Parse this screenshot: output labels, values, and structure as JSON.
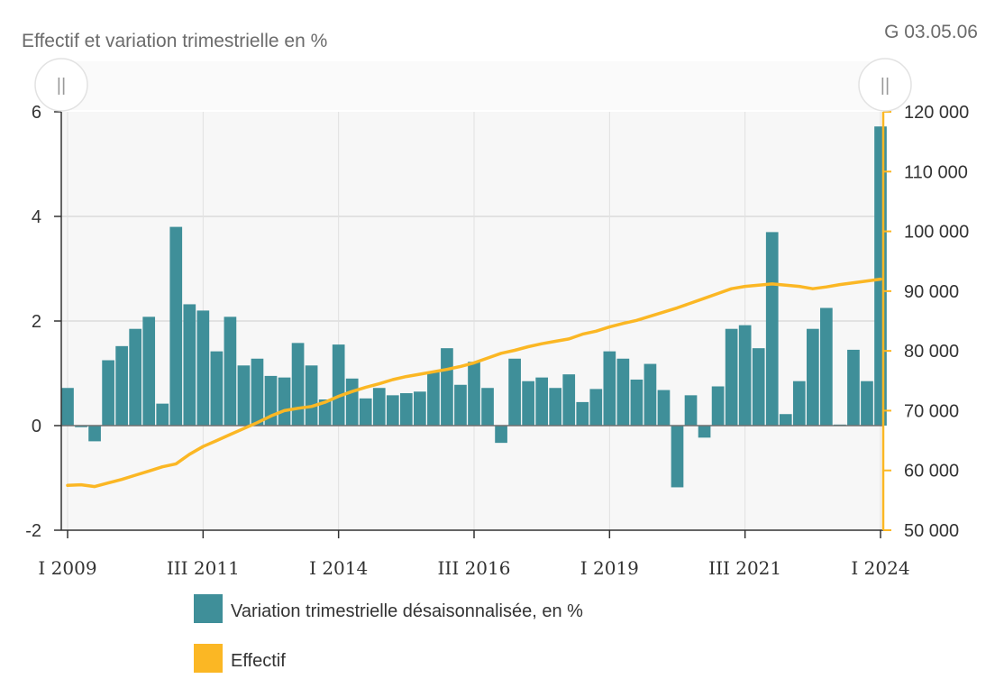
{
  "header": {
    "title": "Effectif et variation trimestrielle en %",
    "code": "G 03.05.06"
  },
  "colors": {
    "bar": "#3f8f99",
    "line": "#fbb724",
    "grid": "#cccccc",
    "plot_bg": "#f7f7f7",
    "axis": "#333333"
  },
  "icons": {
    "left_handle": "drag-handle-icon",
    "right_handle": "drag-handle-icon"
  },
  "chart_data": {
    "type": "bar+line",
    "title": "Effectif et variation trimestrielle en %",
    "x": [
      "I 2009",
      "II 2009",
      "III 2009",
      "IV 2009",
      "I 2010",
      "II 2010",
      "III 2010",
      "IV 2010",
      "I 2011",
      "II 2011",
      "III 2011",
      "IV 2011",
      "I 2012",
      "II 2012",
      "III 2012",
      "IV 2012",
      "I 2013",
      "II 2013",
      "III 2013",
      "IV 2013",
      "I 2014",
      "II 2014",
      "III 2014",
      "IV 2014",
      "I 2015",
      "II 2015",
      "III 2015",
      "IV 2015",
      "I 2016",
      "II 2016",
      "III 2016",
      "IV 2016",
      "I 2017",
      "II 2017",
      "III 2017",
      "IV 2017",
      "I 2018",
      "II 2018",
      "III 2018",
      "IV 2018",
      "I 2019",
      "II 2019",
      "III 2019",
      "IV 2019",
      "I 2020",
      "II 2020",
      "III 2020",
      "IV 2020",
      "I 2021",
      "II 2021",
      "III 2021",
      "IV 2021",
      "I 2022",
      "II 2022",
      "III 2022",
      "IV 2022",
      "I 2023",
      "II 2023",
      "III 2023",
      "IV 2023",
      "I 2024"
    ],
    "x_tick_labels": [
      "I 2009",
      "III 2011",
      "I 2014",
      "III 2016",
      "I 2019",
      "III 2021",
      "I 2024"
    ],
    "series": [
      {
        "name": "Variation trimestrielle désaisonnalisée, en %",
        "type": "bar",
        "axis": "left",
        "values": [
          0.72,
          -0.03,
          -0.3,
          1.25,
          1.52,
          1.85,
          2.08,
          0.42,
          3.8,
          2.32,
          2.2,
          1.42,
          2.08,
          1.15,
          1.28,
          0.95,
          0.92,
          1.58,
          1.15,
          0.5,
          1.55,
          0.9,
          0.52,
          0.72,
          0.58,
          0.62,
          0.65,
          1.02,
          1.48,
          0.78,
          1.22,
          0.72,
          -0.33,
          1.28,
          0.85,
          0.92,
          0.72,
          0.98,
          0.45,
          0.7,
          1.42,
          1.28,
          0.88,
          1.18,
          0.68,
          -1.18,
          0.58,
          -0.23,
          0.75,
          1.85,
          1.92,
          1.48,
          3.7,
          0.22,
          0.85,
          1.85,
          2.25,
          0.02,
          1.45,
          0.85,
          5.72
        ]
      },
      {
        "name": "Effectif",
        "type": "line",
        "axis": "right",
        "values": [
          57500,
          57600,
          57300,
          57900,
          58500,
          59200,
          59900,
          60600,
          61100,
          62700,
          64000,
          65000,
          66000,
          67000,
          68000,
          69100,
          70000,
          70400,
          70700,
          71400,
          72400,
          73200,
          73900,
          74500,
          75200,
          75700,
          76100,
          76500,
          76900,
          77400,
          78000,
          78800,
          79600,
          80100,
          80700,
          81200,
          81600,
          82000,
          82800,
          83300,
          84000,
          84600,
          85100,
          85800,
          86500,
          87200,
          88000,
          88800,
          89600,
          90400,
          90800,
          91000,
          91200,
          91000,
          90800,
          90400,
          90700,
          91100,
          91400,
          91700,
          92000
        ]
      }
    ],
    "y_left": {
      "ylim": [
        -2,
        6
      ],
      "ticks": [
        "-2",
        "0",
        "2",
        "4",
        "6"
      ]
    },
    "y_right": {
      "ylim": [
        50000,
        120000
      ],
      "ticks": [
        "50 000",
        "60 000",
        "70 000",
        "80 000",
        "90 000",
        "100 000",
        "110 000",
        "120 000"
      ]
    },
    "grid": true,
    "legend_position": "bottom"
  }
}
